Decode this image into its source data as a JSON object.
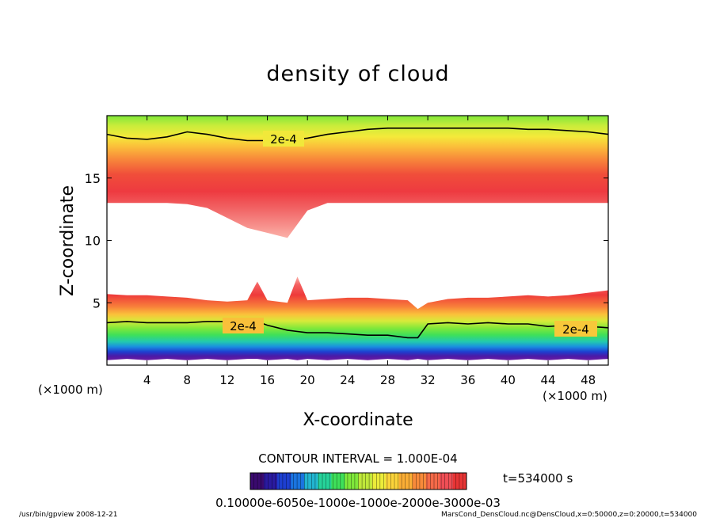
{
  "chart_data": {
    "type": "heatmap",
    "title": "density of cloud",
    "xlabel": "X-coordinate",
    "ylabel": "Z-coordinate",
    "x_units": "(×1000 m)",
    "y_units": "(×1000 m)",
    "xlim": [
      0,
      50
    ],
    "ylim": [
      0,
      20
    ],
    "x_ticks": [
      4,
      8,
      12,
      16,
      20,
      24,
      28,
      32,
      36,
      40,
      44,
      48
    ],
    "y_ticks": [
      5,
      10,
      15
    ],
    "contour_interval_label": "CONTOUR INTERVAL = 1.000E-04",
    "contour_labels": [
      "2e-4",
      "2e-4",
      "2e-4"
    ],
    "time_label": "t=534000 s",
    "colorbar_ticks_text": "0.10000e-6050e-1000e-1000e-2000e-3000e-03",
    "colorbar_colors": [
      "#3a0a6e",
      "#2a1aa0",
      "#1d3fd0",
      "#1a74e0",
      "#22b5d0",
      "#26d39a",
      "#3ee05a",
      "#7fe83a",
      "#bfe83a",
      "#ecec3a",
      "#fbd43a",
      "#fbae35",
      "#f88a3a",
      "#f56a48",
      "#f04e55",
      "#e83535"
    ],
    "upper_layer": {
      "x": [
        0,
        2,
        4,
        6,
        8,
        10,
        12,
        14,
        16,
        18,
        20,
        22,
        24,
        26,
        28,
        30,
        32,
        34,
        36,
        38,
        40,
        42,
        44,
        46,
        48,
        50
      ],
      "top_z": [
        20,
        20,
        20,
        20,
        20,
        20,
        20,
        20,
        20,
        20,
        20,
        20,
        20,
        20,
        20,
        20,
        20,
        20,
        20,
        20,
        20,
        20,
        20,
        20,
        20,
        20
      ],
      "bottom_z": [
        13.0,
        13.0,
        13.0,
        13.0,
        12.9,
        12.6,
        11.8,
        11.0,
        10.6,
        10.2,
        12.4,
        13.0,
        13.0,
        13.0,
        13.0,
        13.0,
        13.0,
        13.0,
        13.0,
        13.0,
        13.0,
        13.0,
        13.0,
        13.0,
        13.0,
        13.0
      ],
      "contour_2e4_z": [
        18.5,
        18.2,
        18.1,
        18.3,
        18.7,
        18.5,
        18.2,
        18.0,
        18.0,
        18.0,
        18.2,
        18.5,
        18.7,
        18.9,
        19.0,
        19.0,
        19.0,
        19.0,
        19.0,
        19.0,
        19.0,
        18.9,
        18.9,
        18.8,
        18.7,
        18.5
      ]
    },
    "lower_layer": {
      "x": [
        0,
        2,
        4,
        6,
        8,
        10,
        12,
        14,
        15,
        16,
        18,
        19,
        20,
        22,
        24,
        26,
        28,
        30,
        31,
        32,
        34,
        36,
        38,
        40,
        42,
        44,
        46,
        48,
        50
      ],
      "top_z": [
        5.7,
        5.6,
        5.6,
        5.5,
        5.4,
        5.2,
        5.1,
        5.2,
        6.7,
        5.2,
        5.0,
        7.1,
        5.2,
        5.3,
        5.4,
        5.4,
        5.3,
        5.2,
        4.5,
        5.0,
        5.3,
        5.4,
        5.4,
        5.5,
        5.6,
        5.5,
        5.6,
        5.8,
        6.0
      ],
      "contour_2e4_z": [
        3.4,
        3.5,
        3.4,
        3.4,
        3.4,
        3.5,
        3.5,
        3.4,
        3.5,
        3.2,
        2.8,
        2.7,
        2.6,
        2.6,
        2.5,
        2.4,
        2.4,
        2.2,
        2.2,
        3.3,
        3.4,
        3.3,
        3.4,
        3.3,
        3.3,
        3.1,
        3.2,
        3.1,
        3.0
      ],
      "bottom_z": [
        0.4,
        0.5,
        0.4,
        0.5,
        0.4,
        0.5,
        0.4,
        0.5,
        0.5,
        0.4,
        0.5,
        0.4,
        0.5,
        0.4,
        0.5,
        0.4,
        0.5,
        0.4,
        0.5,
        0.4,
        0.5,
        0.4,
        0.5,
        0.4,
        0.5,
        0.4,
        0.5,
        0.4,
        0.5
      ]
    }
  },
  "footer": {
    "left": "/usr/bin/gpview   2008-12-21",
    "right": "MarsCond_DensCloud.nc@DensCloud,x=0:50000,z=0:20000,t=534000"
  }
}
